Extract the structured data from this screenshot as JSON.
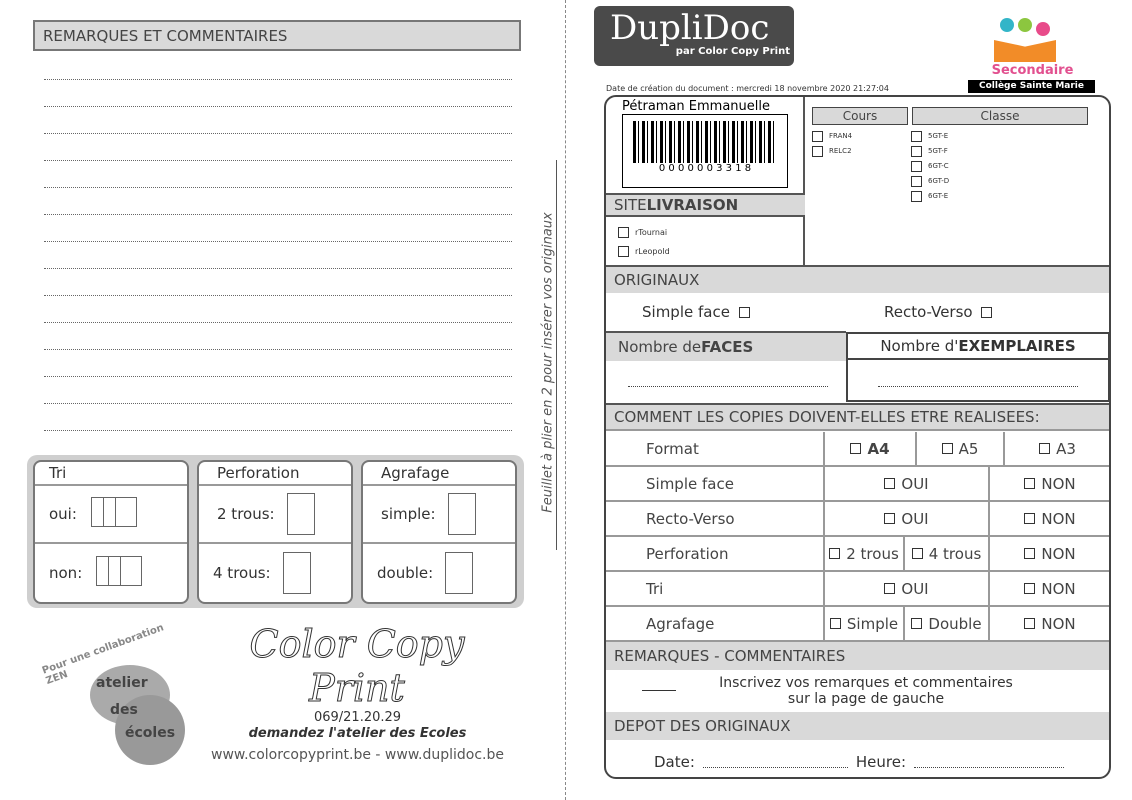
{
  "left": {
    "remarks_title": "REMARQUES ET COMMENTAIRES",
    "fold_text": "Feuillet à plier en 2 pour insérer vos originaux",
    "tri": {
      "title": "Tri",
      "oui": "oui:",
      "non": "non:"
    },
    "perforation": {
      "title": "Perforation",
      "two": "2 trous:",
      "four": "4 trous:"
    },
    "agrafage": {
      "title": "Agrafage",
      "simple": "simple:",
      "double": "double:"
    },
    "zen_logo": "Pour une collaboration ZEN atelier des écoles DupliDoc",
    "ccp_logo": "Color Copy Print",
    "phone": "069/21.20.29",
    "slogan": "demandez l'atelier des Ecoles",
    "websites": "www.colorcopyprint.be - www.duplidoc.be"
  },
  "right": {
    "logo": "DupliDoc",
    "logo_sub": "par Color Copy Print",
    "school_label": "Secondaire",
    "school_name": "Collège Sainte Marie",
    "creation_date": "Date de création du document : mercredi 18 novembre 2020 21:27:04",
    "name": "Pétraman Emmanuelle",
    "barcode": "0 0 0 0 0 0 3 3 1 8",
    "cours_title": "Cours",
    "cours": [
      "FRAN4",
      "RELC2"
    ],
    "classe_title": "Classe",
    "classes": [
      "5GT-E",
      "5GT-F",
      "6GT-C",
      "6GT-D",
      "6GT-E"
    ],
    "site_title_a": "SITE ",
    "site_title_b": "LIVRAISON",
    "sites": [
      "rTournai",
      "rLeopold"
    ],
    "originaux": "ORIGINAUX",
    "simple_face": "Simple face",
    "recto_verso": "Recto-Verso",
    "faces_a": "Nombre de ",
    "faces_b": "FACES",
    "ex_a": "Nombre d'",
    "ex_b": "EXEMPLAIRES",
    "comment": "COMMENT LES COPIES DOIVENT-ELLES ETRE REALISEES:",
    "rows": {
      "format": "Format",
      "a4": "A4",
      "a5": "A5",
      "a3": "A3",
      "simple": "Simple face",
      "recto": "Recto-Verso",
      "perfo": "Perforation",
      "tri": "Tri",
      "agrafage": "Agrafage",
      "oui": "OUI",
      "non": "NON",
      "two": "2 trous",
      "four": "4 trous",
      "s": "Simple",
      "d": "Double"
    },
    "remarques": "REMARQUES - COMMENTAIRES",
    "remarques_text": "Inscrivez vos remarques et commentaires",
    "remarques_text2": "sur la page de gauche",
    "depot": "DEPOT DES ORIGINAUX",
    "date_label": "Date:",
    "heure_label": "Heure:"
  }
}
